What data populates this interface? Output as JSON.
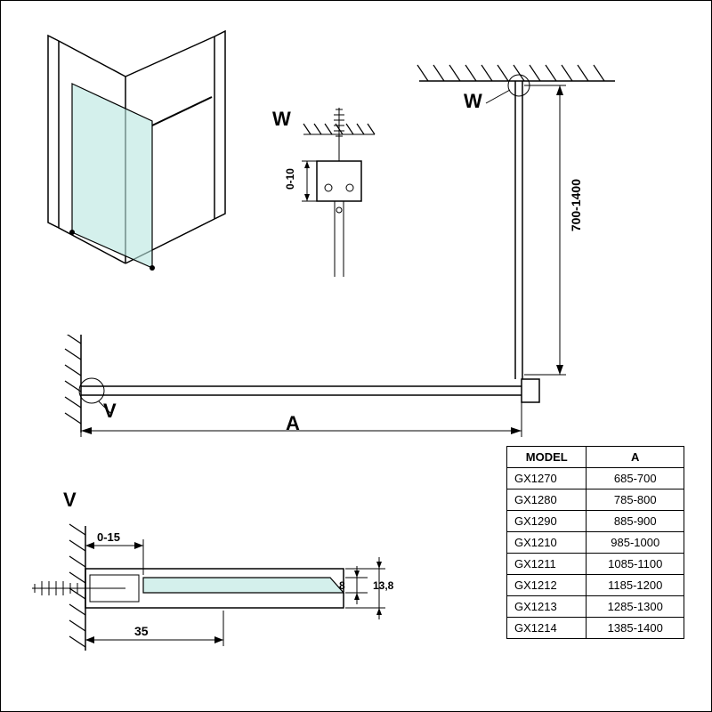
{
  "colors": {
    "glass": "#b8e6e0",
    "line": "#000000",
    "bg": "#ffffff"
  },
  "labels": {
    "W_top": "W",
    "W_detail": "W",
    "V_side": "V",
    "V_detail": "V",
    "A": "A"
  },
  "dimensions": {
    "ceiling_bar": "700-1400",
    "w_detail_adj": "0-10",
    "v_detail_adj": "0-15",
    "v_detail_width": "35",
    "v_detail_glass": "8",
    "v_detail_height": "13,8"
  },
  "table": {
    "columns": [
      "MODEL",
      "A"
    ],
    "rows": [
      [
        "GX1270",
        "685-700"
      ],
      [
        "GX1280",
        "785-800"
      ],
      [
        "GX1290",
        "885-900"
      ],
      [
        "GX1210",
        "985-1000"
      ],
      [
        "GX1211",
        "1085-1100"
      ],
      [
        "GX1212",
        "1185-1200"
      ],
      [
        "GX1213",
        "1285-1300"
      ],
      [
        "GX1214",
        "1385-1400"
      ]
    ]
  },
  "diagram": {
    "type": "technical-drawing",
    "stroke_width": 1.5,
    "font_size_label": 14,
    "font_size_big": 22,
    "font_size_table": 13
  }
}
